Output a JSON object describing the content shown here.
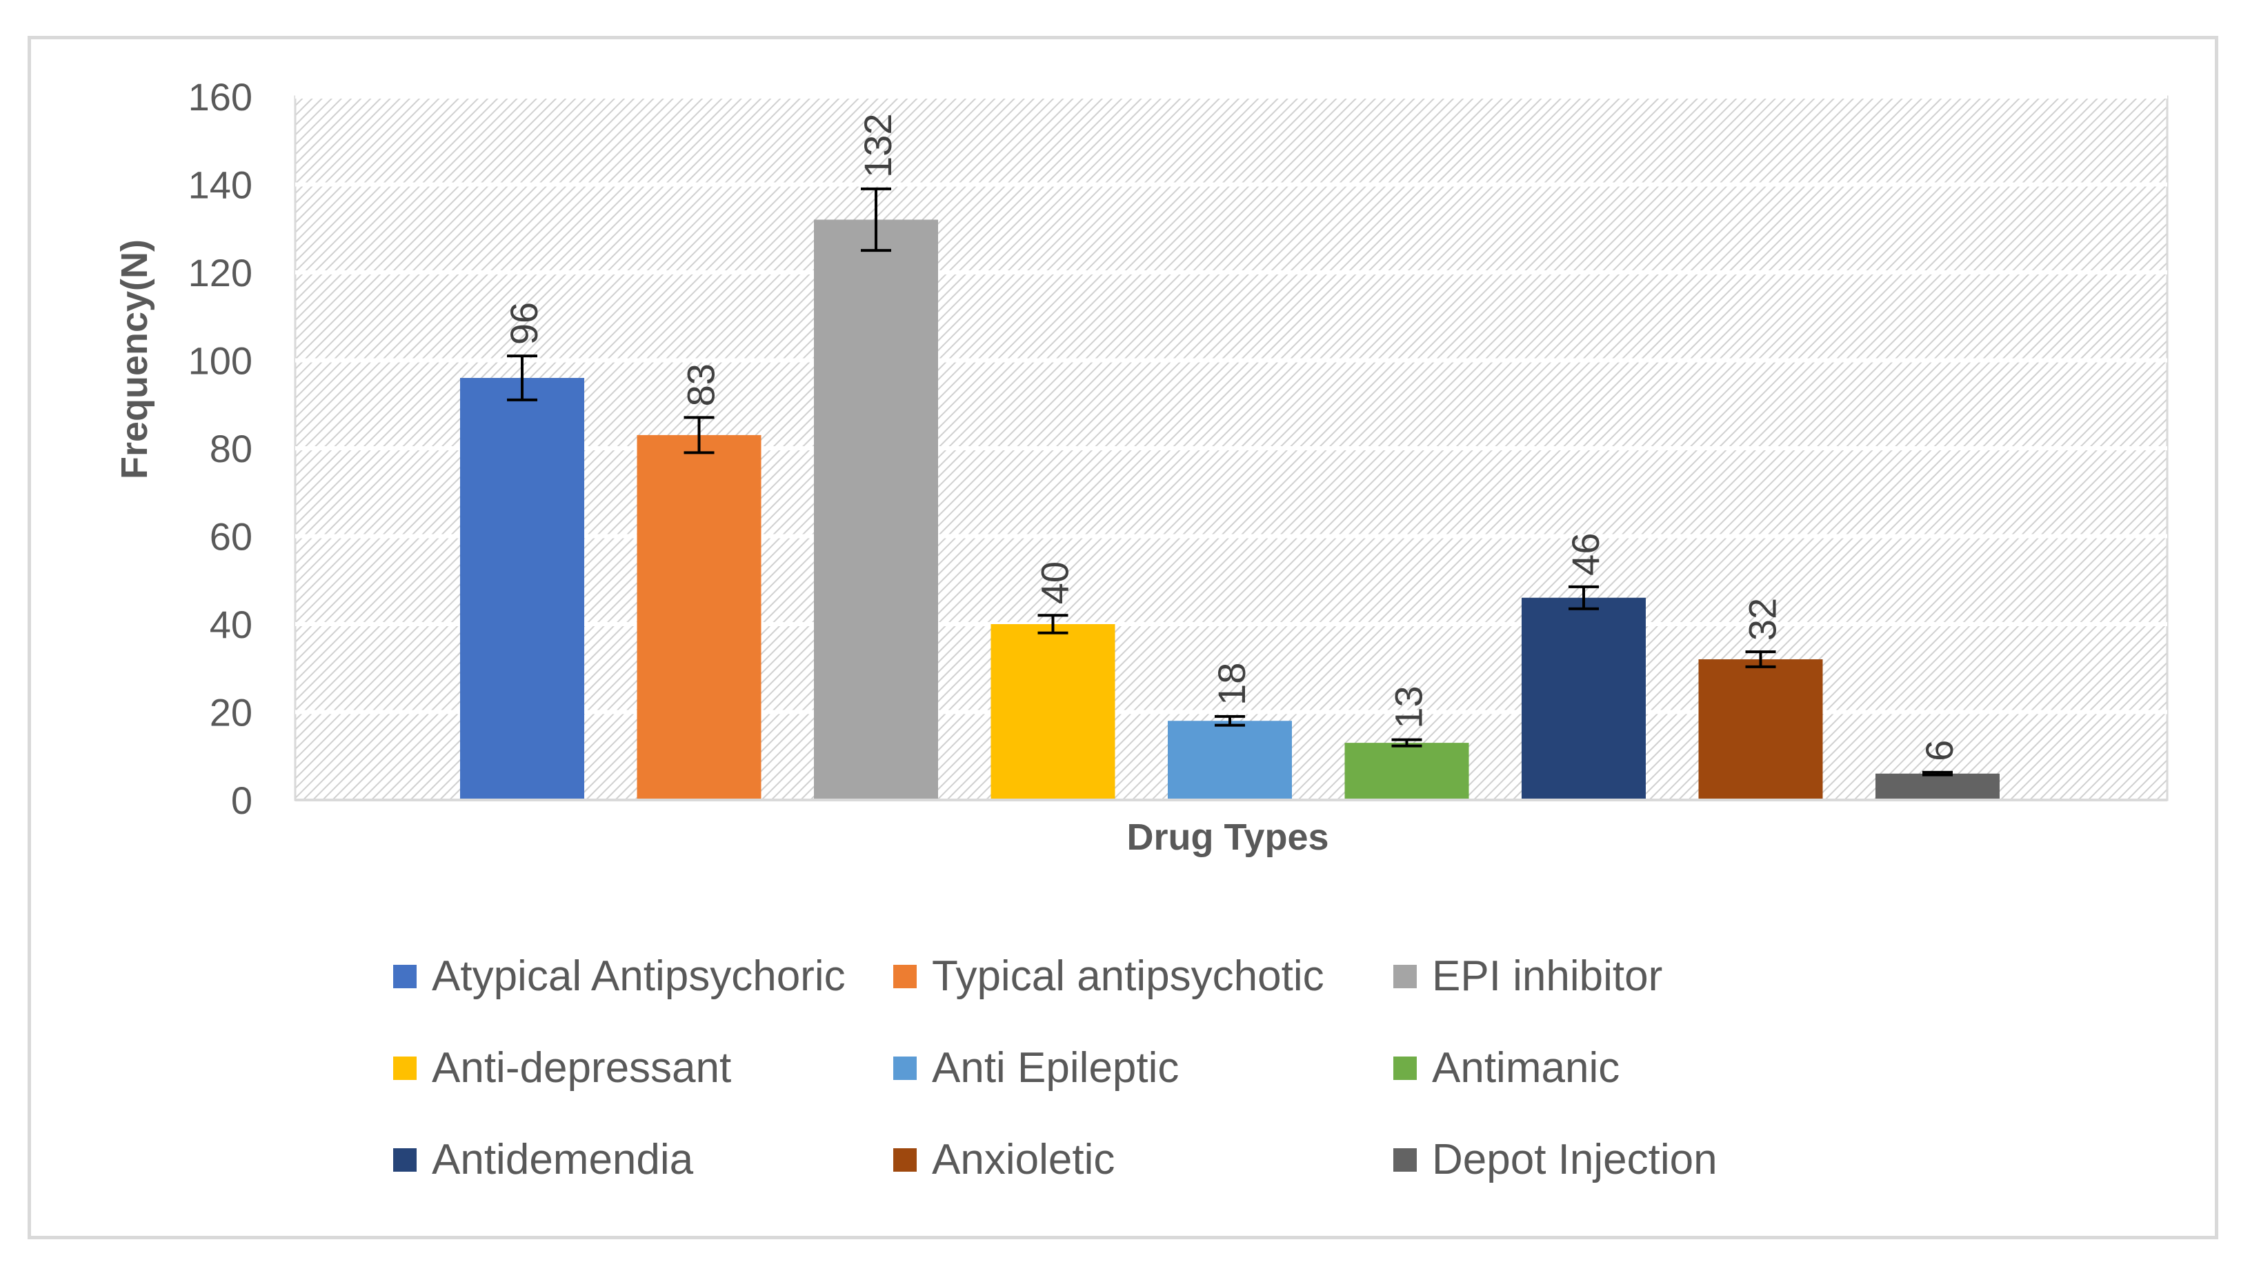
{
  "chart_data": {
    "type": "bar",
    "title": "",
    "xlabel": "Drug Types",
    "ylabel": "Frequency(N)",
    "ylim": [
      0,
      160
    ],
    "yticks": [
      0,
      20,
      40,
      60,
      80,
      100,
      120,
      140,
      160
    ],
    "grid": true,
    "legend_position": "bottom",
    "categories": [
      "Atypical Antipsychoric",
      "Typical antipsychotic",
      "EPI inhibitor",
      "Anti-depressant",
      "Anti Epileptic",
      "Antimanic",
      "Antidemendia",
      "Anxioletic",
      "Depot Injection"
    ],
    "values": [
      96,
      83,
      132,
      40,
      18,
      13,
      46,
      32,
      6
    ],
    "error": [
      5,
      4,
      7,
      2,
      1,
      0.7,
      2.5,
      1.7,
      0.3
    ],
    "colors": [
      "#4472c4",
      "#ed7d31",
      "#a5a5a5",
      "#ffc000",
      "#5b9bd5",
      "#70ad47",
      "#264478",
      "#9e480e",
      "#636363"
    ],
    "data_labels": [
      "96",
      "83",
      "132",
      "40",
      "18",
      "13",
      "46",
      "32",
      "6"
    ]
  }
}
